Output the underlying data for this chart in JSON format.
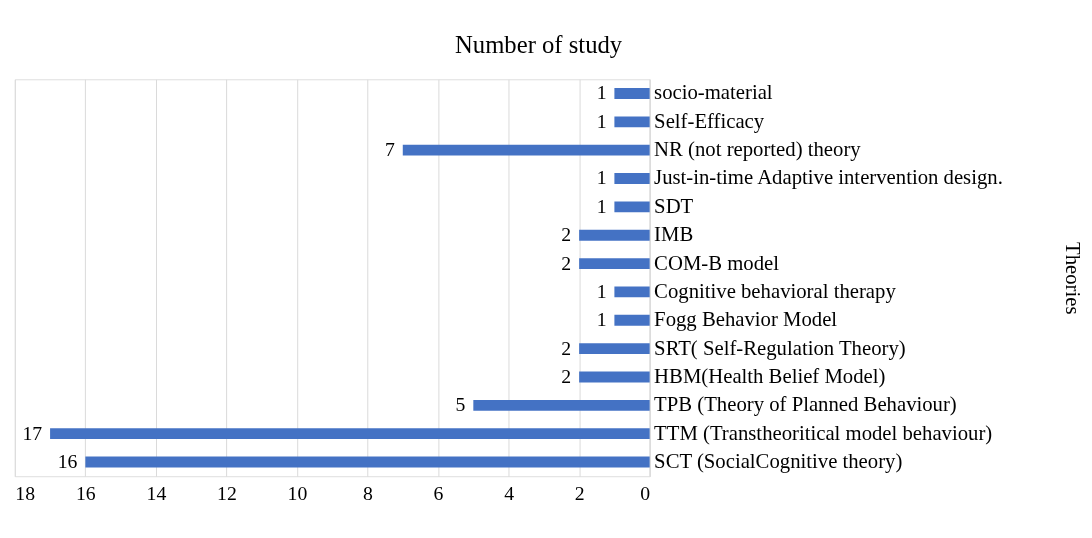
{
  "chart_data": {
    "type": "bar",
    "title": "Number of study",
    "ylabel": "Theories",
    "orientation": "horizontal",
    "categories": [
      "socio-material",
      "Self-Efficacy",
      "NR (not reported) theory",
      "Just-in-time Adaptive intervention design.",
      "SDT",
      "IMB",
      "COM-B model",
      "Cognitive behavioral therapy",
      "Fogg Behavior Model",
      "SRT( Self-Regulation Theory)",
      "HBM(Health Belief Model)",
      " TPB (Theory of Planned Behaviour)",
      "TTM (Transtheoritical model behaviour)",
      "SCT (SocialCognitive theory)"
    ],
    "values": [
      1,
      1,
      7,
      1,
      1,
      2,
      2,
      1,
      1,
      2,
      2,
      5,
      17,
      16
    ],
    "color": "#4472c4",
    "xlim": [
      18,
      0
    ],
    "xticks": [
      18,
      16,
      14,
      12,
      10,
      8,
      6,
      4,
      2,
      0
    ],
    "grid": "x",
    "data_labels": true,
    "legend": false
  }
}
